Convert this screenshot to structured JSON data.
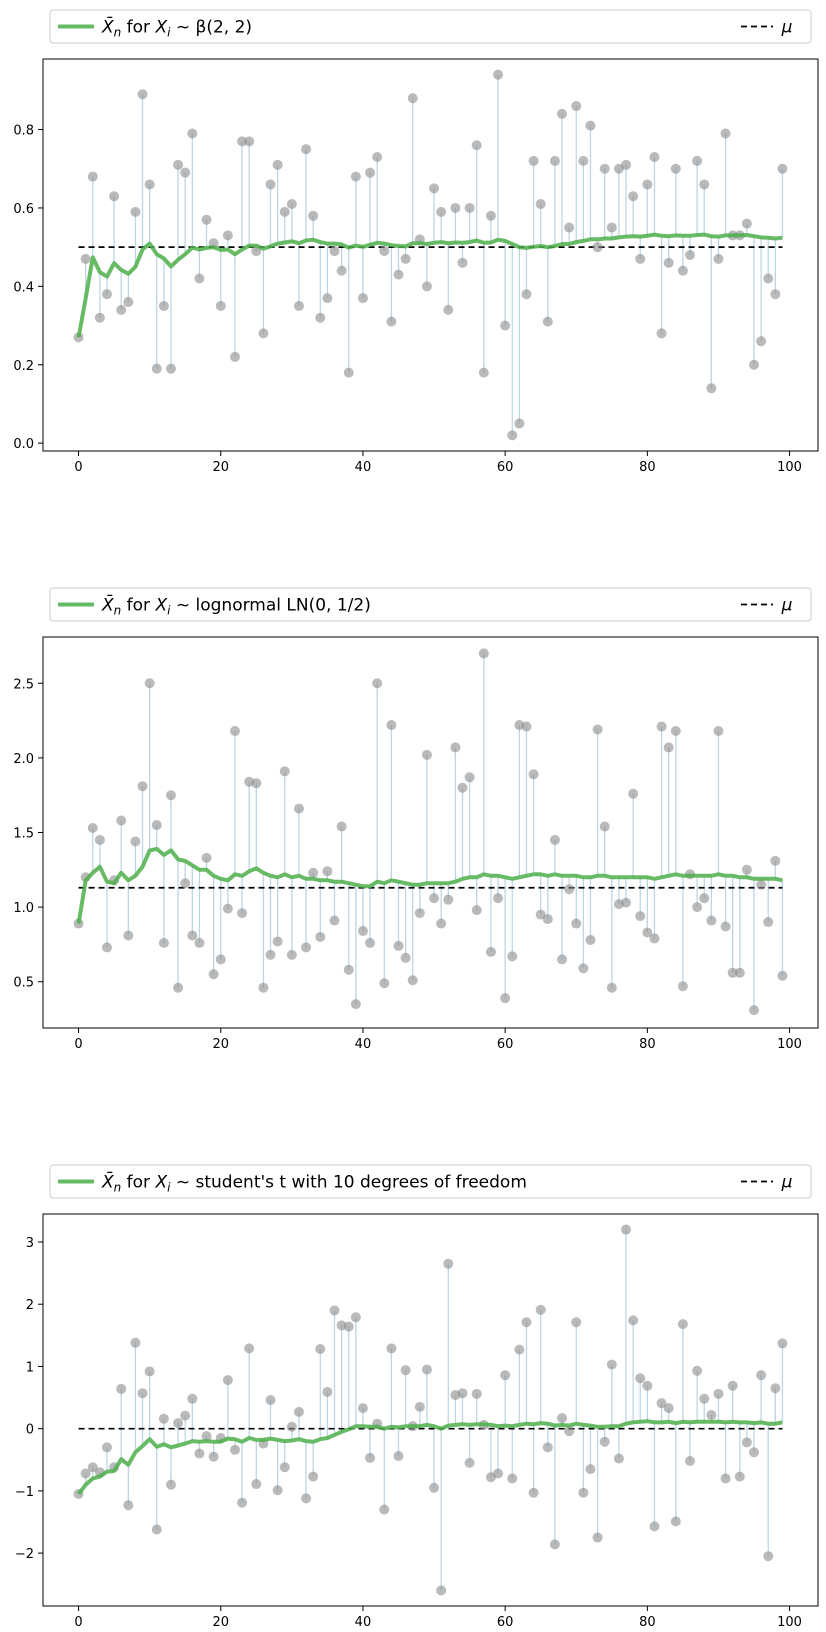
{
  "figure": {
    "colors": {
      "mean_line": "#4daf4a",
      "stem": "#bcd6e8",
      "sample_dot": "#8c8c8c",
      "mu_line": "#000000",
      "frame": "#000000",
      "legend_border": "#cccccc"
    }
  },
  "chart_data": [
    {
      "type": "line",
      "legend": {
        "mean_label_pre": "for",
        "mean_label_dist": "β(2, 2)",
        "mu_label": "μ",
        "placement": "top, spanning full width"
      },
      "mu": 0.5,
      "ylim": [
        -0.02,
        0.98
      ],
      "xlim": [
        -5,
        104
      ],
      "xticks": [
        0,
        20,
        40,
        60,
        80,
        100
      ],
      "yticks": [
        0.0,
        0.2,
        0.4,
        0.6,
        0.8
      ],
      "ytick_labels": [
        "0.0",
        "0.2",
        "0.4",
        "0.6",
        "0.8"
      ],
      "grid": false,
      "samples": [
        0.27,
        0.47,
        0.68,
        0.32,
        0.38,
        0.63,
        0.34,
        0.36,
        0.59,
        0.89,
        0.66,
        0.19,
        0.35,
        0.19,
        0.71,
        0.69,
        0.79,
        0.42,
        0.57,
        0.51,
        0.35,
        0.53,
        0.22,
        0.77,
        0.77,
        0.49,
        0.28,
        0.66,
        0.71,
        0.59,
        0.61,
        0.35,
        0.75,
        0.58,
        0.32,
        0.37,
        0.49,
        0.44,
        0.18,
        0.68,
        0.37,
        0.69,
        0.73,
        0.49,
        0.31,
        0.43,
        0.47,
        0.88,
        0.52,
        0.4,
        0.65,
        0.59,
        0.34,
        0.6,
        0.46,
        0.6,
        0.76,
        0.18,
        0.58,
        0.94,
        0.3,
        0.02,
        0.05,
        0.38,
        0.72,
        0.61,
        0.31,
        0.72,
        0.84,
        0.55,
        0.86,
        0.72,
        0.81,
        0.5,
        0.7,
        0.55,
        0.7,
        0.71,
        0.63,
        0.47,
        0.66,
        0.73,
        0.28,
        0.46,
        0.7,
        0.44,
        0.48,
        0.72,
        0.66,
        0.14,
        0.47,
        0.79,
        0.53,
        0.53,
        0.56,
        0.2,
        0.26,
        0.42,
        0.38,
        0.7
      ],
      "running_mean": [
        0.27,
        0.37,
        0.474,
        0.436,
        0.425,
        0.459,
        0.442,
        0.432,
        0.45,
        0.494,
        0.509,
        0.482,
        0.471,
        0.451,
        0.468,
        0.482,
        0.499,
        0.494,
        0.498,
        0.5,
        0.493,
        0.494,
        0.482,
        0.494,
        0.504,
        0.504,
        0.496,
        0.502,
        0.509,
        0.512,
        0.515,
        0.51,
        0.517,
        0.519,
        0.513,
        0.509,
        0.509,
        0.507,
        0.499,
        0.504,
        0.501,
        0.506,
        0.511,
        0.509,
        0.505,
        0.503,
        0.502,
        0.51,
        0.51,
        0.508,
        0.511,
        0.513,
        0.51,
        0.512,
        0.511,
        0.513,
        0.517,
        0.511,
        0.512,
        0.519,
        0.516,
        0.508,
        0.5,
        0.498,
        0.501,
        0.503,
        0.5,
        0.503,
        0.508,
        0.508,
        0.513,
        0.516,
        0.52,
        0.52,
        0.522,
        0.522,
        0.525,
        0.527,
        0.528,
        0.527,
        0.529,
        0.532,
        0.529,
        0.528,
        0.53,
        0.529,
        0.529,
        0.531,
        0.532,
        0.528,
        0.527,
        0.53,
        0.53,
        0.53,
        0.531,
        0.528,
        0.525,
        0.524,
        0.522,
        0.524
      ]
    },
    {
      "type": "line",
      "legend": {
        "mean_label_pre": "for",
        "mean_label_dist": "lognormal LN(0, 1/2)",
        "mu_label": "μ",
        "placement": "top, spanning full width"
      },
      "mu": 1.13,
      "ylim": [
        0.19,
        2.81
      ],
      "xlim": [
        -5,
        104
      ],
      "xticks": [
        0,
        20,
        40,
        60,
        80,
        100
      ],
      "yticks": [
        0.5,
        1.0,
        1.5,
        2.0,
        2.5
      ],
      "ytick_labels": [
        "0.5",
        "1.0",
        "1.5",
        "2.0",
        "2.5"
      ],
      "grid": false,
      "samples": [
        0.89,
        1.2,
        1.53,
        1.45,
        0.73,
        1.18,
        1.58,
        0.81,
        1.44,
        1.81,
        2.5,
        1.55,
        0.76,
        1.75,
        0.46,
        1.16,
        0.81,
        0.76,
        1.33,
        0.55,
        0.65,
        0.99,
        2.18,
        0.96,
        1.84,
        1.83,
        0.46,
        0.68,
        0.77,
        1.91,
        0.68,
        1.66,
        0.73,
        1.23,
        0.8,
        1.24,
        0.91,
        1.54,
        0.58,
        0.35,
        0.84,
        0.76,
        2.5,
        0.49,
        2.22,
        0.74,
        0.66,
        0.51,
        0.96,
        2.02,
        1.06,
        0.89,
        1.05,
        2.07,
        1.8,
        1.87,
        0.98,
        2.7,
        0.7,
        1.06,
        0.39,
        0.67,
        2.22,
        2.21,
        1.89,
        0.95,
        0.92,
        1.45,
        0.65,
        1.12,
        0.89,
        0.59,
        0.78,
        2.19,
        1.54,
        0.46,
        1.02,
        1.03,
        1.76,
        0.94,
        0.83,
        0.79,
        2.21,
        2.07,
        2.18,
        0.47,
        1.22,
        1.0,
        1.06,
        0.91,
        2.18,
        0.87,
        0.56,
        0.56,
        1.25,
        0.31,
        1.15,
        0.9,
        1.31,
        0.54
      ],
      "running_mean": [
        0.89,
        1.18,
        1.23,
        1.27,
        1.17,
        1.16,
        1.23,
        1.18,
        1.21,
        1.27,
        1.38,
        1.39,
        1.35,
        1.38,
        1.32,
        1.31,
        1.28,
        1.25,
        1.25,
        1.21,
        1.19,
        1.18,
        1.22,
        1.21,
        1.24,
        1.26,
        1.23,
        1.21,
        1.2,
        1.22,
        1.2,
        1.21,
        1.19,
        1.19,
        1.18,
        1.18,
        1.17,
        1.17,
        1.16,
        1.15,
        1.14,
        1.14,
        1.17,
        1.16,
        1.18,
        1.17,
        1.16,
        1.15,
        1.15,
        1.16,
        1.16,
        1.16,
        1.16,
        1.17,
        1.19,
        1.2,
        1.2,
        1.22,
        1.21,
        1.21,
        1.2,
        1.19,
        1.2,
        1.21,
        1.22,
        1.22,
        1.21,
        1.22,
        1.21,
        1.21,
        1.21,
        1.2,
        1.2,
        1.21,
        1.21,
        1.2,
        1.2,
        1.2,
        1.2,
        1.2,
        1.2,
        1.19,
        1.2,
        1.21,
        1.22,
        1.21,
        1.21,
        1.21,
        1.21,
        1.21,
        1.22,
        1.21,
        1.21,
        1.2,
        1.2,
        1.19,
        1.19,
        1.19,
        1.19,
        1.18
      ]
    },
    {
      "type": "line",
      "legend": {
        "mean_label_pre": "for",
        "mean_label_dist": "student's t with 10 degrees of freedom",
        "mu_label": "μ",
        "placement": "top, spanning full width"
      },
      "mu": 0.0,
      "ylim": [
        -2.85,
        3.45
      ],
      "xlim": [
        -5,
        104
      ],
      "xticks": [
        0,
        20,
        40,
        60,
        80,
        100
      ],
      "yticks": [
        -2,
        -1,
        0,
        1,
        2,
        3
      ],
      "ytick_labels": [
        "−2",
        "−1",
        "0",
        "1",
        "2",
        "3"
      ],
      "grid": false,
      "samples": [
        -1.05,
        -0.72,
        -0.62,
        -0.7,
        -0.3,
        -0.62,
        0.64,
        -1.23,
        1.38,
        0.57,
        0.92,
        -1.62,
        0.16,
        -0.9,
        0.09,
        0.21,
        0.48,
        -0.4,
        -0.12,
        -0.45,
        -0.15,
        0.78,
        -0.34,
        -1.19,
        1.29,
        -0.89,
        -0.24,
        0.46,
        -0.99,
        -0.62,
        0.03,
        0.27,
        -1.12,
        -0.77,
        1.28,
        0.59,
        1.9,
        1.66,
        1.64,
        1.79,
        0.33,
        -0.47,
        0.08,
        -1.3,
        1.29,
        -0.44,
        0.94,
        0.04,
        0.35,
        0.95,
        -0.95,
        -2.6,
        2.65,
        0.54,
        0.57,
        -0.55,
        0.56,
        0.06,
        -0.78,
        -0.72,
        0.86,
        -0.8,
        1.27,
        1.71,
        -1.03,
        1.91,
        -0.3,
        -1.86,
        0.17,
        -0.04,
        1.71,
        -1.03,
        -0.65,
        -1.75,
        -0.21,
        1.03,
        -0.48,
        3.2,
        1.74,
        0.81,
        0.69,
        -1.57,
        0.41,
        0.33,
        -1.49,
        1.68,
        -0.52,
        0.93,
        0.48,
        0.22,
        0.56,
        -0.8,
        0.69,
        -0.77,
        -0.22,
        -0.38,
        0.86,
        -2.05,
        0.65,
        1.37
      ],
      "running_mean": [
        -1.05,
        -0.9,
        -0.8,
        -0.77,
        -0.69,
        -0.68,
        -0.49,
        -0.58,
        -0.38,
        -0.28,
        -0.17,
        -0.29,
        -0.25,
        -0.3,
        -0.27,
        -0.24,
        -0.2,
        -0.21,
        -0.2,
        -0.21,
        -0.21,
        -0.16,
        -0.17,
        -0.21,
        -0.15,
        -0.18,
        -0.18,
        -0.16,
        -0.18,
        -0.2,
        -0.19,
        -0.17,
        -0.2,
        -0.21,
        -0.17,
        -0.15,
        -0.1,
        -0.05,
        -0.01,
        0.04,
        0.04,
        0.03,
        0.03,
        0.0,
        0.03,
        0.02,
        0.04,
        0.04,
        0.04,
        0.06,
        0.04,
        0.0,
        0.05,
        0.06,
        0.07,
        0.06,
        0.07,
        0.07,
        0.06,
        0.04,
        0.05,
        0.04,
        0.06,
        0.08,
        0.07,
        0.09,
        0.08,
        0.05,
        0.06,
        0.05,
        0.08,
        0.06,
        0.05,
        0.03,
        0.03,
        0.04,
        0.04,
        0.08,
        0.1,
        0.11,
        0.12,
        0.1,
        0.1,
        0.11,
        0.09,
        0.11,
        0.1,
        0.11,
        0.11,
        0.11,
        0.11,
        0.1,
        0.11,
        0.1,
        0.1,
        0.09,
        0.1,
        0.08,
        0.08,
        0.1
      ]
    }
  ]
}
